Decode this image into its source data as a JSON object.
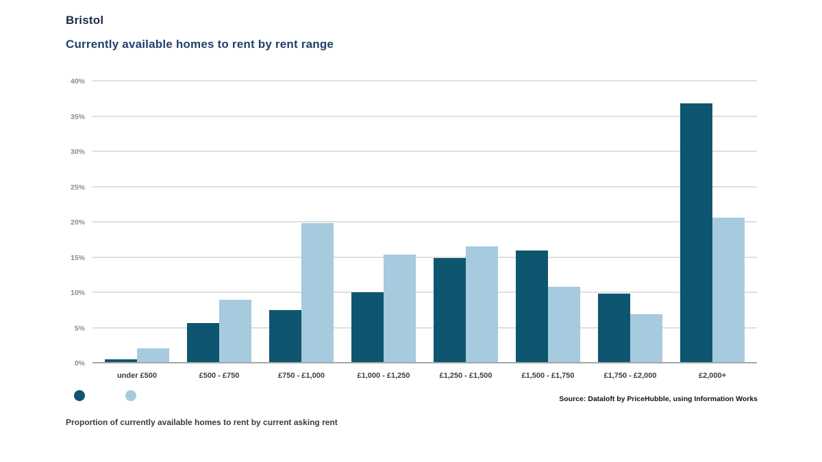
{
  "header": {
    "title": "Bristol",
    "subtitle": "Currently available homes to rent by rent range"
  },
  "chart_data": {
    "type": "bar",
    "title": "Bristol",
    "subtitle": "Currently available homes to rent by rent range",
    "categories": [
      "under £500",
      "£500 - £750",
      "£750 - £1,000",
      "£1,000 - £1,250",
      "£1,250 - £1,500",
      "£1,500 - £1,750",
      "£1,750 - £2,000",
      "£2,000+"
    ],
    "series": [
      {
        "name": "dark-blue",
        "color": "#0e5570",
        "values": [
          0.5,
          5.6,
          7.5,
          10.0,
          14.9,
          15.9,
          9.8,
          36.8
        ]
      },
      {
        "name": "light-blue",
        "color": "#a6cade",
        "values": [
          2.0,
          8.9,
          19.8,
          15.3,
          16.5,
          10.8,
          6.9,
          20.6
        ]
      }
    ],
    "xlabel": "",
    "ylabel": "",
    "ylim": [
      0,
      40
    ],
    "yticks": [
      "0%",
      "5%",
      "10%",
      "15%",
      "20%",
      "25%",
      "30%",
      "35%",
      "40%"
    ],
    "grid": true,
    "legend_position": "bottom-left"
  },
  "footer": {
    "source": "Source: Dataloft by PriceHubble, using Information Works",
    "caption": "Proportion of currently available homes to rent by current asking rent"
  },
  "colors": {
    "bar_dark": "#0e5570",
    "bar_light": "#a6cade",
    "gridline": "#dedede",
    "axis": "#a6a6a6",
    "title": "#1b2844",
    "subtitle": "#21406b"
  }
}
